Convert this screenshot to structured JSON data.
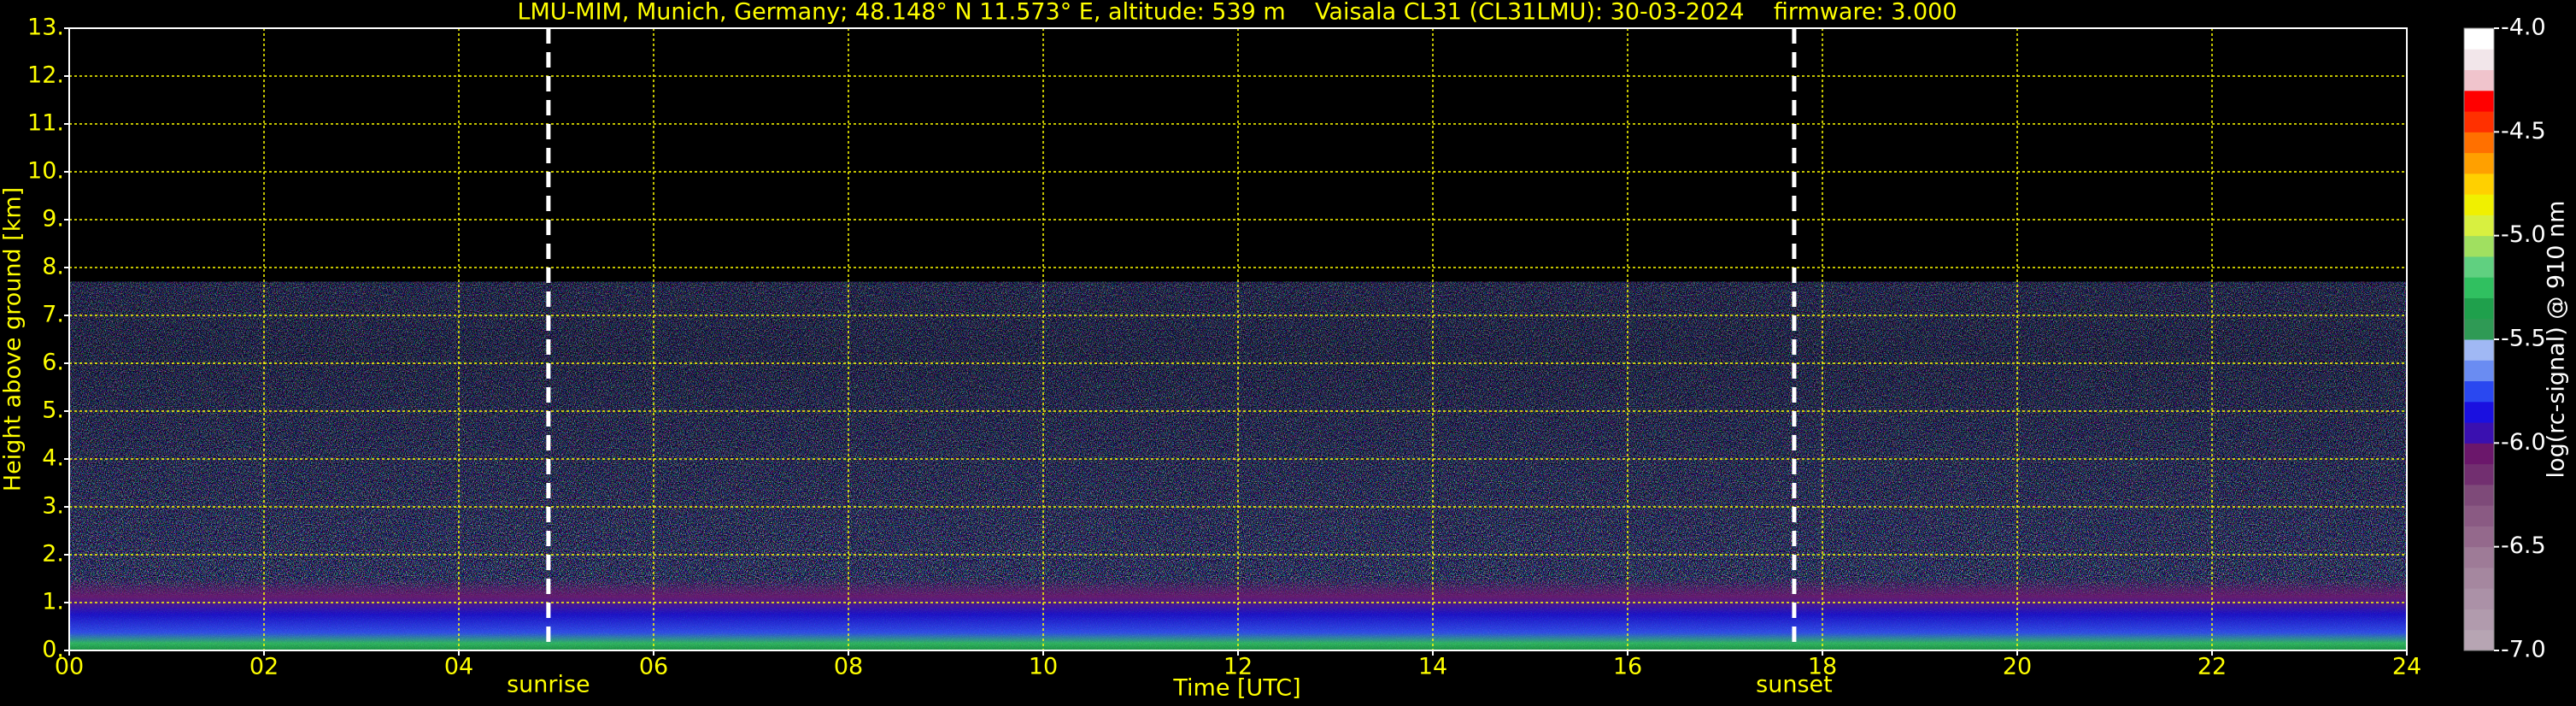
{
  "chart_data": {
    "type": "heatmap",
    "title": "LMU-MIM, Munich, Germany; 48.148° N 11.573° E, altitude: 539 m    Vaisala CL31 (CL31LMU): 30-03-2024    firmware: 3.000",
    "xlabel": "Time [UTC]",
    "ylabel": "Height above ground [km]",
    "xlim": [
      0,
      24
    ],
    "xticks": [
      {
        "value": 0,
        "label": "00"
      },
      {
        "value": 2,
        "label": "02"
      },
      {
        "value": 4,
        "label": "04"
      },
      {
        "value": 6,
        "label": "06"
      },
      {
        "value": 8,
        "label": "08"
      },
      {
        "value": 10,
        "label": "10"
      },
      {
        "value": 12,
        "label": "12"
      },
      {
        "value": 14,
        "label": "14"
      },
      {
        "value": 16,
        "label": "16"
      },
      {
        "value": 18,
        "label": "18"
      },
      {
        "value": 20,
        "label": "20"
      },
      {
        "value": 22,
        "label": "22"
      },
      {
        "value": 24,
        "label": "24"
      }
    ],
    "ylim": [
      0,
      13
    ],
    "yticks": [
      {
        "value": 0,
        "label": "0."
      },
      {
        "value": 1,
        "label": "1."
      },
      {
        "value": 2,
        "label": "2."
      },
      {
        "value": 3,
        "label": "3."
      },
      {
        "value": 4,
        "label": "4."
      },
      {
        "value": 5,
        "label": "5."
      },
      {
        "value": 6,
        "label": "6."
      },
      {
        "value": 7,
        "label": "7."
      },
      {
        "value": 8,
        "label": "8."
      },
      {
        "value": 9,
        "label": "9."
      },
      {
        "value": 10,
        "label": "10."
      },
      {
        "value": 11,
        "label": "11."
      },
      {
        "value": 12,
        "label": "12."
      },
      {
        "value": 13,
        "label": "13."
      }
    ],
    "grid": true,
    "grid_color": "#ffff00",
    "events": [
      {
        "label": "sunrise",
        "x": 4.92
      },
      {
        "label": "sunset",
        "x": 17.71
      }
    ],
    "colorbar": {
      "label": "log(rc-signal) @ 910 nm",
      "clim": [
        -7,
        -4
      ],
      "ticks": [
        {
          "value": -7,
          "label": "-7.0"
        },
        {
          "value": -6.5,
          "label": "-6.5"
        },
        {
          "value": -6,
          "label": "-6.0"
        },
        {
          "value": -5.5,
          "label": "-5.5"
        },
        {
          "value": -5,
          "label": "-5.0"
        },
        {
          "value": -4.5,
          "label": "-4.5"
        },
        {
          "value": -4,
          "label": "-4.0"
        }
      ],
      "colors": [
        "#b7a5b3",
        "#b19bad",
        "#ab91a7",
        "#a5879f",
        "#9e7b97",
        "#94698c",
        "#8a5a83",
        "#7e4a79",
        "#722f70",
        "#6b176b",
        "#3a10b0",
        "#1a10e0",
        "#2a48f0",
        "#6a8cf2",
        "#a0b8f4",
        "#2f9a55",
        "#1fa04c",
        "#30c060",
        "#60d080",
        "#a0e060",
        "#d8f040",
        "#f0f000",
        "#ffd000",
        "#ffa000",
        "#ff7000",
        "#ff3000",
        "#ff0000",
        "#f0c4cc",
        "#f2e6ea",
        "#ffffff"
      ]
    }
  }
}
